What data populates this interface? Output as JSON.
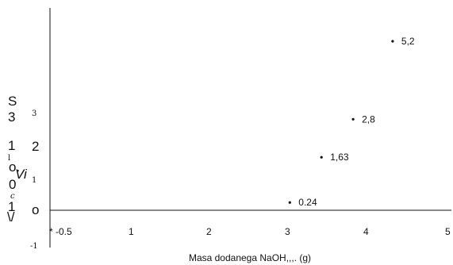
{
  "chart_data": {
    "type": "scatter",
    "title": "",
    "xlabel": "Masa dodanega NaOH,,,. (g)",
    "ylabel_fragments": [
      {
        "text": "S",
        "style": "big"
      },
      {
        "text": "3",
        "style": "big"
      },
      {
        "text": "1",
        "style": "big"
      },
      {
        "text": "l",
        "style": "small"
      },
      {
        "text": "o.",
        "style": "big"
      },
      {
        "text": "0",
        "style": "big"
      },
      {
        "text": "c",
        "style": "small"
      },
      {
        "text": "1",
        "style": "big"
      },
      {
        "text": "\\/",
        "style": "big"
      },
      {
        "text": "Vi",
        "style": "big"
      }
    ],
    "x_ticks": [
      "* -0.5",
      "1",
      "2",
      "3",
      "4",
      "5"
    ],
    "y_ticks": [
      {
        "label": "3",
        "style": "small"
      },
      {
        "label": "2",
        "style": "big"
      },
      {
        "label": "1",
        "style": "small"
      },
      {
        "label": "o",
        "style": "big"
      },
      {
        "label": "-1",
        "style": "small"
      }
    ],
    "points": [
      {
        "x": 3.0,
        "y": 0.24,
        "label": "0.24"
      },
      {
        "x": 3.4,
        "y": 1.63,
        "label": "1,63"
      },
      {
        "x": 3.8,
        "y": 2.8,
        "label": "2,8"
      },
      {
        "x": 4.3,
        "y": 5.2,
        "label": "5,2"
      }
    ],
    "xlim": [
      0,
      5
    ],
    "ylim": [
      -1,
      6.2
    ],
    "grid": false,
    "legend": "none"
  }
}
